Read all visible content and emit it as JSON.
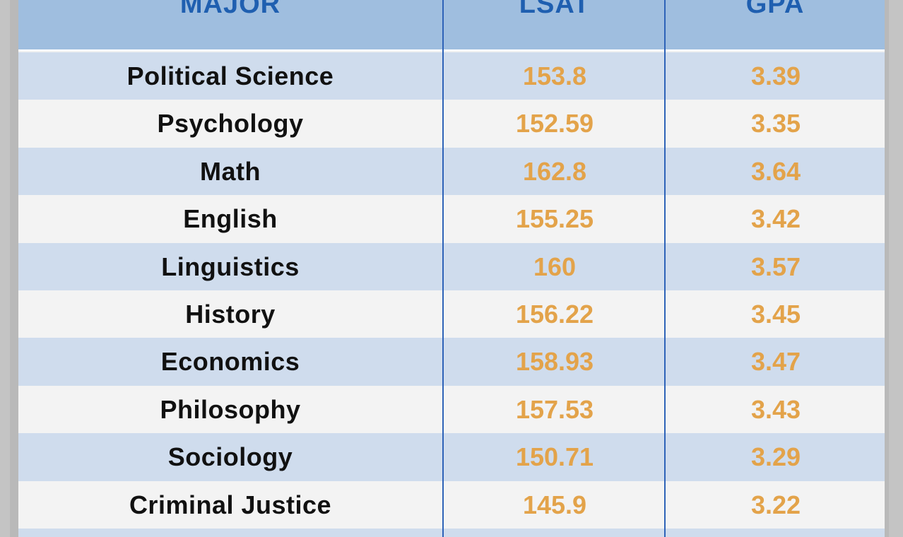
{
  "header": {
    "major": "MAJOR",
    "lsat": "LSAT",
    "gpa": "GPA"
  },
  "rows": [
    {
      "major": "Political Science",
      "lsat": "153.8",
      "gpa": "3.39"
    },
    {
      "major": "Psychology",
      "lsat": "152.59",
      "gpa": "3.35"
    },
    {
      "major": "Math",
      "lsat": "162.8",
      "gpa": "3.64"
    },
    {
      "major": "English",
      "lsat": "155.25",
      "gpa": "3.42"
    },
    {
      "major": "Linguistics",
      "lsat": "160",
      "gpa": "3.57"
    },
    {
      "major": "History",
      "lsat": "156.22",
      "gpa": "3.45"
    },
    {
      "major": "Economics",
      "lsat": "158.93",
      "gpa": "3.47"
    },
    {
      "major": "Philosophy",
      "lsat": "157.53",
      "gpa": "3.43"
    },
    {
      "major": "Sociology",
      "lsat": "150.71",
      "gpa": "3.29"
    },
    {
      "major": "Criminal Justice",
      "lsat": "145.9",
      "gpa": "3.22"
    }
  ],
  "colors": {
    "header_bg": "#9fbedf",
    "header_text": "#1f5fb0",
    "row_alt": "#cfdced",
    "row_plain": "#f3f3f3",
    "value_text": "#e3a34a",
    "major_text": "#111111"
  }
}
